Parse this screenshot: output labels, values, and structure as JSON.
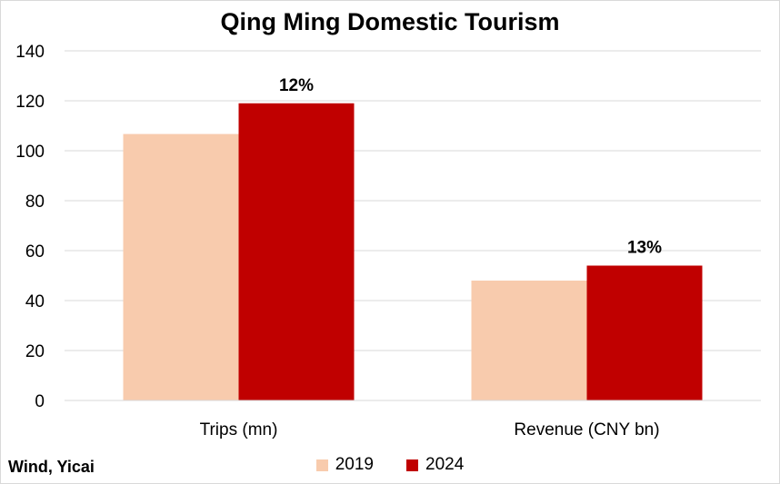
{
  "chart_data": {
    "type": "bar",
    "title": "Qing Ming Domestic Tourism",
    "categories": [
      "Trips (mn)",
      "Revenue (CNY bn)"
    ],
    "series": [
      {
        "name": "2019",
        "values": [
          106.7,
          48.0
        ],
        "color": "#f8cbad"
      },
      {
        "name": "2024",
        "values": [
          119.0,
          54.0
        ],
        "color": "#c00000"
      }
    ],
    "data_labels": [
      "12%",
      "13%"
    ],
    "ylim": [
      0,
      140
    ],
    "yticks": [
      "0",
      "20",
      "40",
      "60",
      "80",
      "100",
      "120",
      "140"
    ],
    "grid": true,
    "legend_position": "bottom"
  },
  "source": "Wind, Yicai"
}
